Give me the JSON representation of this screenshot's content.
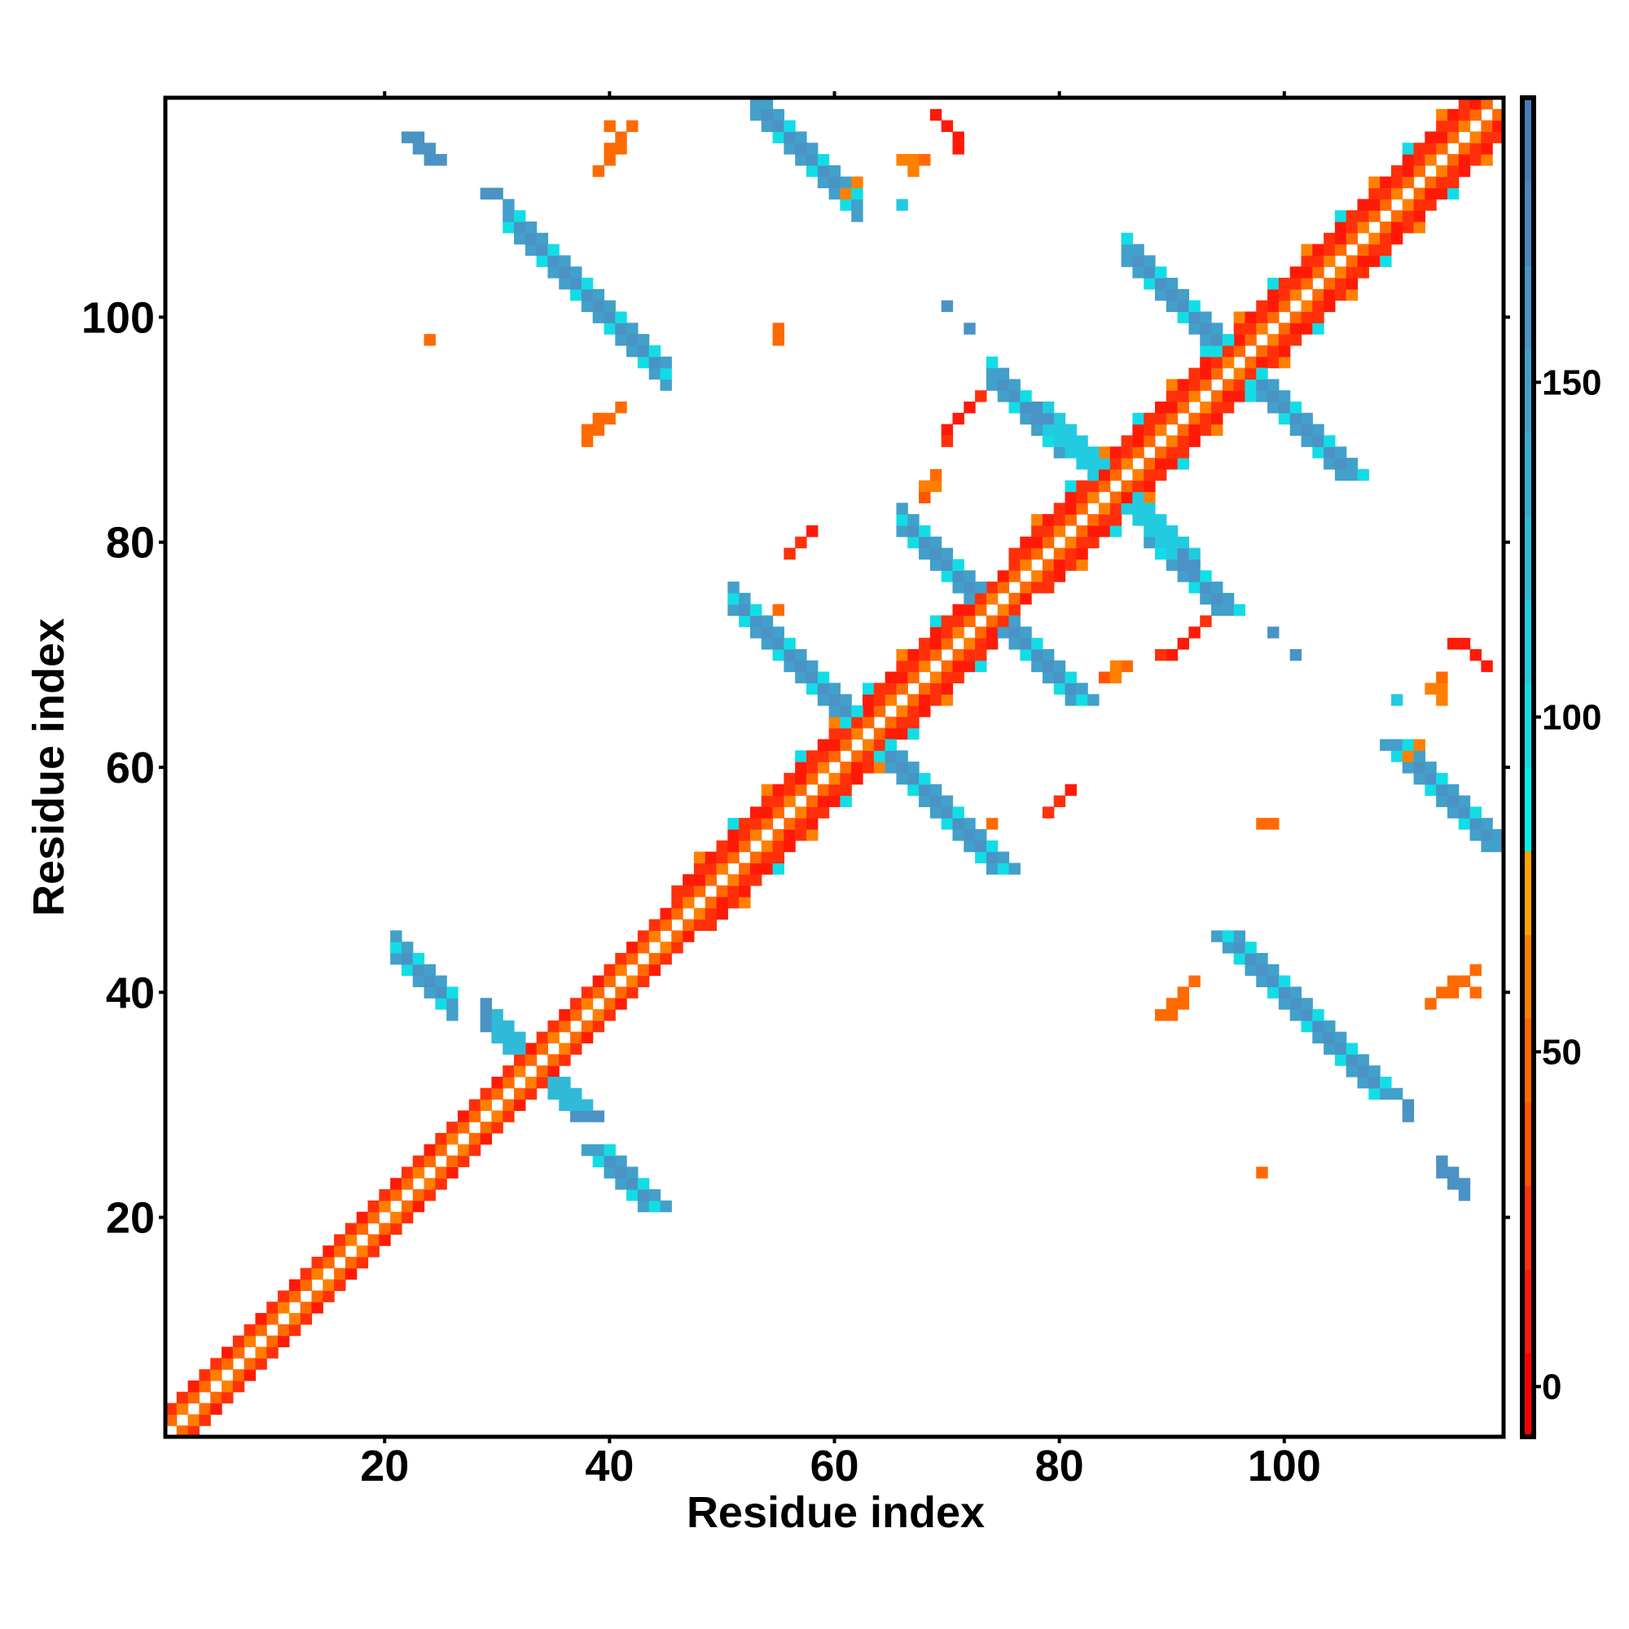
{
  "chart_data": {
    "type": "heatmap",
    "title": "",
    "xlabel": "Residue index",
    "ylabel": "Residue index",
    "n_residues": 119,
    "xlim": [
      0.5,
      119.5
    ],
    "ylim": [
      0.5,
      119.5
    ],
    "xticks": [
      20,
      40,
      60,
      80,
      100
    ],
    "yticks": [
      20,
      40,
      60,
      80,
      100
    ],
    "colorbar": {
      "range": [
        -7.5,
        192.5
      ],
      "ticks": [
        0,
        50,
        100,
        150
      ],
      "bin_width": 12.5,
      "colors": [
        "#ff0000",
        "#ff1a08",
        "#ff300a",
        "#ff5500",
        "#ff6a00",
        "#ff8000",
        "#ffa200",
        "#00eef0",
        "#12dde6",
        "#22cbe0",
        "#30bad8",
        "#38acd2",
        "#42a0ca",
        "#4a93c4",
        "#4b86be",
        "#4a7cb8",
        "#ffffff"
      ]
    },
    "diagonal": {
      "offset1_value": 45,
      "offset2_value": 15,
      "offset3_value": 25,
      "offset4_value": 60,
      "helix_ranges": [
        [
          46,
          61
        ],
        [
          63,
          72
        ],
        [
          76,
          94
        ],
        [
          96,
          118
        ]
      ]
    },
    "antiparallel_pairs": [
      {
        "sum": 65,
        "from": 21,
        "to": 26,
        "value": 158
      },
      {
        "sum": 67,
        "from": 29,
        "to": 33,
        "value": 120
      },
      {
        "sum": 140,
        "from": 31,
        "to": 45,
        "value": 160
      },
      {
        "sum": 172,
        "from": 53,
        "to": 62,
        "value": 158
      },
      {
        "sum": 126,
        "from": 51,
        "to": 62,
        "value": 155
      },
      {
        "sum": 148,
        "from": 66,
        "to": 73,
        "value": 160
      },
      {
        "sum": 192,
        "from": 86,
        "to": 95,
        "value": 160
      },
      {
        "sum": 169,
        "from": 74,
        "to": 80,
        "value": 160
      },
      {
        "sum": 170,
        "from": 79,
        "to": 84,
        "value": 110
      }
    ],
    "isolated_contacts": [
      [
        40,
        117,
        50
      ],
      [
        41,
        116,
        50
      ],
      [
        42,
        117,
        50
      ],
      [
        40,
        115,
        45
      ],
      [
        69,
        118,
        10
      ],
      [
        70,
        117,
        10
      ],
      [
        66,
        114,
        60
      ],
      [
        67,
        114,
        60
      ],
      [
        38,
        90,
        45
      ],
      [
        39,
        91,
        50
      ],
      [
        41,
        92,
        45
      ],
      [
        38,
        89,
        55
      ],
      [
        24,
        98,
        50
      ],
      [
        55,
        98,
        50
      ],
      [
        57,
        80,
        15
      ],
      [
        56,
        79,
        20
      ],
      [
        55,
        74,
        45
      ],
      [
        68,
        84,
        40
      ],
      [
        69,
        85,
        60
      ],
      [
        70,
        90,
        15
      ],
      [
        71,
        91,
        10
      ],
      [
        72,
        92,
        15
      ],
      [
        70,
        89,
        20
      ],
      [
        81,
        58,
        15
      ],
      [
        80,
        57,
        20
      ],
      [
        86,
        69,
        50
      ],
      [
        85,
        68,
        60
      ],
      [
        90,
        70,
        15
      ],
      [
        92,
        72,
        15
      ],
      [
        93,
        73,
        20
      ],
      [
        89,
        38,
        45
      ],
      [
        90,
        39,
        50
      ],
      [
        91,
        40,
        45
      ],
      [
        114,
        40,
        45
      ],
      [
        115,
        41,
        50
      ],
      [
        113,
        39,
        45
      ],
      [
        113,
        67,
        55
      ],
      [
        114,
        68,
        50
      ],
      [
        115,
        71,
        15
      ],
      [
        116,
        71,
        15
      ],
      [
        98,
        24,
        50
      ],
      [
        99,
        55,
        45
      ],
      [
        111,
        61,
        60
      ],
      [
        112,
        62,
        60
      ],
      [
        22,
        116,
        160
      ],
      [
        23,
        115,
        160
      ],
      [
        24,
        114,
        160
      ],
      [
        29,
        111,
        160
      ],
      [
        30,
        111,
        160
      ],
      [
        31,
        110,
        150
      ],
      [
        70,
        101,
        160
      ],
      [
        72,
        99,
        160
      ],
      [
        91,
        79,
        160
      ],
      [
        92,
        78,
        160
      ],
      [
        99,
        72,
        160
      ],
      [
        101,
        70,
        160
      ],
      [
        110,
        66,
        110
      ],
      [
        111,
        30,
        160
      ],
      [
        114,
        25,
        160
      ],
      [
        115,
        24,
        160
      ],
      [
        116,
        23,
        160
      ],
      [
        29,
        39,
        160
      ],
      [
        29,
        38,
        160
      ],
      [
        37,
        29,
        160
      ],
      [
        38,
        29,
        160
      ]
    ]
  }
}
